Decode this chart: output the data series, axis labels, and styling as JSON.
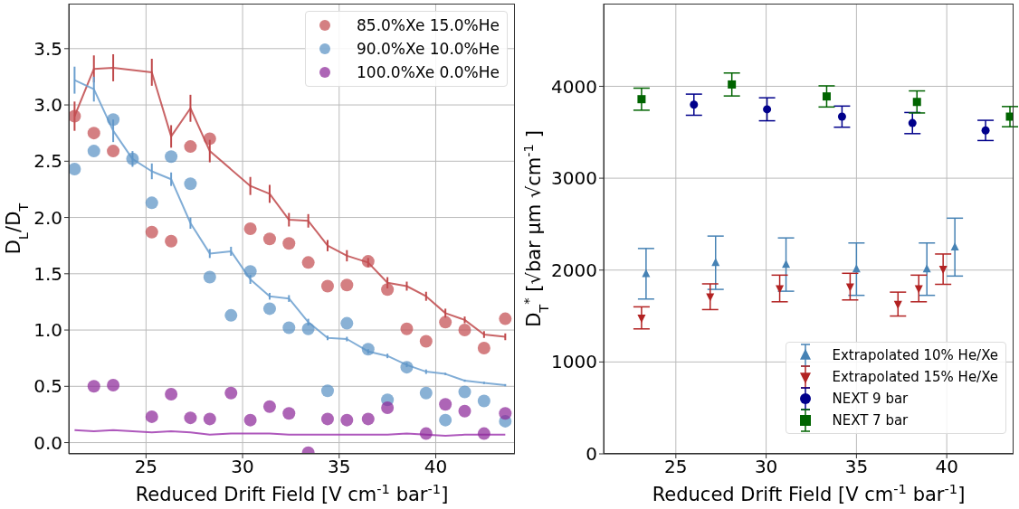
{
  "chart_data": [
    {
      "type": "scatter",
      "xlabel": "Reduced Drift Field [V cm$^{-1}$ bar$^{-1}$]",
      "ylabel": "D$_{L}$/D$_{T}$",
      "x": [
        21.3,
        22.3,
        23.3,
        24.3,
        25.3,
        26.3,
        27.3,
        28.3,
        29.4,
        30.4,
        31.4,
        32.4,
        33.4,
        34.4,
        35.4,
        36.5,
        37.5,
        38.5,
        39.5,
        40.5,
        41.5,
        42.5,
        43.6
      ],
      "xlim": [
        21,
        44.1
      ],
      "ylim": [
        -0.1,
        3.9
      ],
      "xticks": [
        25,
        30,
        35,
        40
      ],
      "yticks": [
        {
          "value": 0,
          "label": "0.0"
        },
        {
          "value": 0.5,
          "label": "0.5"
        },
        {
          "value": 1,
          "label": "1.0"
        },
        {
          "value": 1.5,
          "label": "1.5"
        },
        {
          "value": 2,
          "label": "2.0"
        },
        {
          "value": 2.5,
          "label": "2.5"
        },
        {
          "value": 3,
          "label": "3.0"
        },
        {
          "value": 3.5,
          "label": "3.5"
        }
      ],
      "grid": true,
      "legend": "top right",
      "marker": "circle",
      "series": [
        {
          "name": "85.0%Xe 15.0%He",
          "color": "#c44e52",
          "values": [
            2.9,
            2.75,
            2.59,
            null,
            1.87,
            1.79,
            2.63,
            2.7,
            null,
            1.9,
            1.81,
            1.77,
            1.6,
            1.39,
            1.4,
            1.61,
            1.36,
            1.01,
            0.9,
            1.07,
            1.0,
            0.84,
            1.1
          ]
        },
        {
          "name": "90.0%Xe 10.0%He",
          "color": "#5b93c5",
          "values": [
            2.43,
            2.59,
            2.87,
            2.52,
            2.13,
            2.54,
            2.3,
            1.47,
            1.13,
            1.52,
            1.19,
            1.02,
            1.01,
            0.46,
            1.06,
            0.83,
            0.38,
            0.67,
            0.44,
            0.2,
            0.45,
            0.37,
            0.19
          ]
        },
        {
          "name": "100.0%Xe 0.0%He",
          "color": "#8e2a9a",
          "values": [
            null,
            0.5,
            0.51,
            null,
            0.23,
            0.43,
            0.22,
            0.21,
            0.44,
            0.2,
            0.32,
            0.26,
            -0.09,
            0.21,
            0.2,
            0.21,
            0.31,
            null,
            0.08,
            0.34,
            0.28,
            0.08,
            0.26
          ]
        },
        {
          "type": "line",
          "marker": "none",
          "color": "#c0494b",
          "x": [
            21.3,
            22.3,
            23.3,
            25.3,
            26.3,
            27.3,
            28.3,
            30.4,
            31.4,
            32.4,
            33.4,
            34.4,
            35.4,
            36.5,
            37.5,
            38.5,
            39.5,
            40.5,
            41.5,
            42.5,
            43.6
          ],
          "values": [
            2.9,
            3.32,
            3.33,
            3.29,
            2.72,
            2.97,
            2.59,
            2.28,
            2.21,
            1.98,
            1.97,
            1.75,
            1.66,
            1.6,
            1.42,
            1.39,
            1.3,
            1.15,
            1.09,
            0.96,
            0.94
          ],
          "errors": [
            0.13,
            0.12,
            0.12,
            0.12,
            0.1,
            0.12,
            0.1,
            0.08,
            0.08,
            0.06,
            0.06,
            0.05,
            0.05,
            0.04,
            0.05,
            0.04,
            0.04,
            0.04,
            0.03,
            0.03,
            0.03
          ]
        },
        {
          "type": "line",
          "marker": "none",
          "color": "#6b9fcf",
          "values": [
            3.22,
            3.14,
            2.77,
            2.52,
            2.41,
            2.34,
            1.95,
            1.68,
            1.7,
            1.45,
            1.3,
            1.28,
            1.07,
            0.93,
            0.92,
            0.81,
            0.77,
            0.69,
            0.63,
            0.61,
            0.55,
            0.53,
            0.51
          ],
          "errors": [
            0.12,
            0.11,
            0.1,
            0.07,
            0.07,
            0.06,
            0.05,
            0.04,
            0.04,
            0.04,
            0.03,
            0.03,
            0.03,
            0.02,
            0.02,
            0.02,
            0.02,
            0.02,
            0.02,
            0.01,
            0.01,
            0.01,
            0.01
          ]
        },
        {
          "type": "line",
          "marker": "none",
          "color": "#a03bb0",
          "values": [
            0.11,
            0.1,
            0.11,
            0.1,
            0.09,
            0.1,
            0.09,
            0.07,
            0.08,
            0.08,
            0.08,
            0.07,
            0.07,
            0.07,
            0.07,
            0.07,
            0.07,
            0.08,
            0.07,
            0.06,
            0.07,
            0.07,
            0.07
          ]
        }
      ]
    },
    {
      "type": "scatter",
      "xlabel": "Reduced Drift Field [V cm$^{-1}$ bar$^{-1}$]",
      "ylabel": "D$_{T}$$^{*}$ [√bar μm √cm$^{-1}$ ]",
      "xlim": [
        21,
        43.7
      ],
      "ylim": [
        0,
        4900
      ],
      "xticks": [
        25,
        30,
        35,
        40
      ],
      "yticks": [
        0,
        1000,
        2000,
        3000,
        4000
      ],
      "grid": true,
      "legend": "bottom right",
      "series": [
        {
          "name": "Extrapolated 10% He/Xe",
          "marker": "triangle",
          "color": "#4682b4",
          "x": [
            23.35,
            27.2,
            31.1,
            35.0,
            38.9,
            40.45
          ],
          "values": [
            1960,
            2080,
            2060,
            2010,
            2010,
            2250
          ],
          "errors": [
            275,
            290,
            290,
            285,
            285,
            315
          ]
        },
        {
          "name": "Extrapolated 15% He/Xe",
          "marker": "triangle-down",
          "color": "#b22222",
          "x": [
            23.1,
            26.9,
            30.75,
            34.65,
            37.3,
            38.45,
            39.8
          ],
          "values": [
            1480,
            1710,
            1800,
            1820,
            1630,
            1800,
            2010
          ],
          "errors": [
            120,
            140,
            145,
            145,
            130,
            145,
            165
          ]
        },
        {
          "name": "NEXT 9 bar",
          "marker": "circle",
          "color": "#00008b",
          "x": [
            26.0,
            30.05,
            34.2,
            38.1,
            42.15
          ],
          "values": [
            3800,
            3750,
            3670,
            3600,
            3520
          ],
          "errors": [
            115,
            125,
            115,
            115,
            110
          ]
        },
        {
          "name": "NEXT 7 bar",
          "marker": "square",
          "color": "#006400",
          "x": [
            23.1,
            28.1,
            33.35,
            38.35,
            43.5
          ],
          "values": [
            3860,
            4020,
            3890,
            3830,
            3670
          ],
          "errors": [
            120,
            125,
            115,
            120,
            110
          ]
        }
      ]
    }
  ]
}
